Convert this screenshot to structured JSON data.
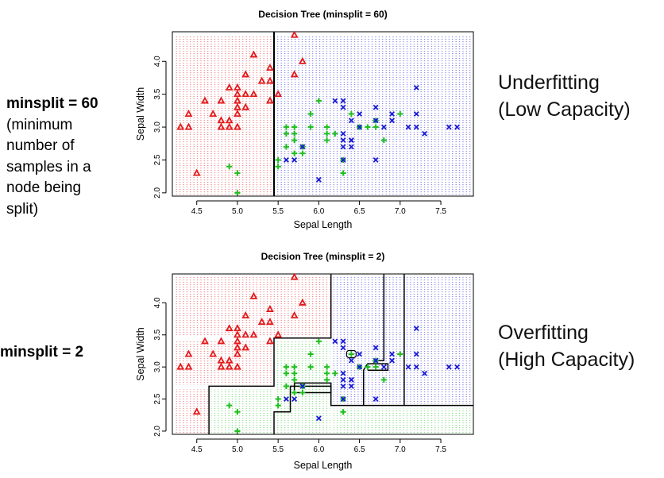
{
  "left_notes": [
    {
      "heading": "minsplit = 60",
      "body_lines": [
        "(minimum",
        "number of",
        "samples in a",
        "node being",
        "split)"
      ]
    },
    {
      "heading": "minsplit = 2",
      "body_lines": []
    }
  ],
  "right_notes": [
    {
      "line1": "Underfitting",
      "line2": "(Low Capacity)"
    },
    {
      "line1": "Overfitting",
      "line2": "(High Capacity)"
    }
  ],
  "colors": {
    "setosa": "#e41a1c",
    "versicolor": "#1fbf1f",
    "virginica": "#1a1ad6",
    "boundary": "#000000"
  },
  "chart_data": [
    {
      "type": "scatter",
      "title": "Decision Tree (minsplit = 60)",
      "xlabel": "Sepal Length",
      "ylabel": "Sepal Width",
      "xlim": [
        4.2,
        7.9
      ],
      "ylim": [
        1.95,
        4.45
      ],
      "xticks": [
        "4.5",
        "5.0",
        "5.5",
        "6.0",
        "6.5",
        "7.0",
        "7.5"
      ],
      "yticks": [
        "2.0",
        "2.5",
        "3.0",
        "3.5",
        "4.0"
      ],
      "regions": [
        {
          "class": "setosa",
          "x": [
            4.2,
            5.45
          ],
          "y": [
            1.95,
            4.45
          ]
        },
        {
          "class": "virginica",
          "x": [
            5.45,
            7.9
          ],
          "y": [
            1.95,
            4.45
          ]
        }
      ],
      "boundaries": [
        [
          [
            5.45,
            1.95
          ],
          [
            5.45,
            4.45
          ]
        ]
      ],
      "series": [
        {
          "class": "setosa",
          "marker": "triangle",
          "points": [
            [
              4.3,
              3.0
            ],
            [
              4.4,
              3.0
            ],
            [
              4.4,
              3.2
            ],
            [
              4.5,
              2.3
            ],
            [
              4.6,
              3.4
            ],
            [
              4.7,
              3.2
            ],
            [
              4.8,
              3.0
            ],
            [
              4.8,
              3.1
            ],
            [
              4.8,
              3.4
            ],
            [
              4.9,
              3.0
            ],
            [
              4.9,
              3.1
            ],
            [
              5.0,
              3.0
            ],
            [
              5.0,
              3.2
            ],
            [
              5.0,
              3.3
            ],
            [
              5.0,
              3.4
            ],
            [
              5.0,
              3.5
            ],
            [
              5.0,
              3.6
            ],
            [
              5.1,
              3.3
            ],
            [
              5.1,
              3.5
            ],
            [
              5.1,
              3.8
            ],
            [
              5.2,
              3.5
            ],
            [
              5.2,
              4.1
            ],
            [
              5.3,
              3.7
            ],
            [
              5.4,
              3.4
            ],
            [
              5.4,
              3.7
            ],
            [
              5.4,
              3.9
            ],
            [
              5.5,
              3.5
            ],
            [
              5.7,
              3.8
            ],
            [
              5.7,
              4.4
            ],
            [
              5.8,
              4.0
            ],
            [
              4.9,
              3.6
            ]
          ]
        },
        {
          "class": "versicolor",
          "marker": "plus",
          "points": [
            [
              4.9,
              2.4
            ],
            [
              5.0,
              2.0
            ],
            [
              5.0,
              2.3
            ],
            [
              5.5,
              2.4
            ],
            [
              5.5,
              2.5
            ],
            [
              5.6,
              2.7
            ],
            [
              5.6,
              2.9
            ],
            [
              5.6,
              3.0
            ],
            [
              5.7,
              2.6
            ],
            [
              5.7,
              2.8
            ],
            [
              5.7,
              2.9
            ],
            [
              5.7,
              3.0
            ],
            [
              5.8,
              2.6
            ],
            [
              5.8,
              2.7
            ],
            [
              5.9,
              3.0
            ],
            [
              5.9,
              3.2
            ],
            [
              6.0,
              3.4
            ],
            [
              6.1,
              3.0
            ],
            [
              6.1,
              2.9
            ],
            [
              6.1,
              2.8
            ],
            [
              6.2,
              2.9
            ],
            [
              6.3,
              2.3
            ],
            [
              6.3,
              2.5
            ],
            [
              6.4,
              3.2
            ],
            [
              6.5,
              3.0
            ],
            [
              6.6,
              3.0
            ],
            [
              6.7,
              3.1
            ],
            [
              6.7,
              3.0
            ],
            [
              6.8,
              2.8
            ],
            [
              7.0,
              3.2
            ]
          ]
        },
        {
          "class": "virginica",
          "marker": "cross",
          "points": [
            [
              5.6,
              2.5
            ],
            [
              5.7,
              2.5
            ],
            [
              5.8,
              2.7
            ],
            [
              6.0,
              2.2
            ],
            [
              6.2,
              3.4
            ],
            [
              6.3,
              3.4
            ],
            [
              6.3,
              2.9
            ],
            [
              6.3,
              2.8
            ],
            [
              6.3,
              2.7
            ],
            [
              6.3,
              2.5
            ],
            [
              6.4,
              2.8
            ],
            [
              6.4,
              2.7
            ],
            [
              6.4,
              3.1
            ],
            [
              6.5,
              3.2
            ],
            [
              6.7,
              3.3
            ],
            [
              6.7,
              3.1
            ],
            [
              6.7,
              2.5
            ],
            [
              6.8,
              3.0
            ],
            [
              6.9,
              3.2
            ],
            [
              6.9,
              3.1
            ],
            [
              7.1,
              3.0
            ],
            [
              7.2,
              3.6
            ],
            [
              7.2,
              3.2
            ],
            [
              7.2,
              3.0
            ],
            [
              7.3,
              2.9
            ],
            [
              7.6,
              3.0
            ],
            [
              7.7,
              3.0
            ],
            [
              6.3,
              3.3
            ],
            [
              6.4,
              2.8
            ],
            [
              6.5,
              3.0
            ]
          ]
        }
      ]
    },
    {
      "type": "scatter",
      "title": "Decision Tree (minsplit = 2)",
      "xlabel": "Sepal Length",
      "ylabel": "Sepal Width",
      "xlim": [
        4.2,
        7.9
      ],
      "ylim": [
        1.95,
        4.45
      ],
      "xticks": [
        "4.5",
        "5.0",
        "5.5",
        "6.0",
        "6.5",
        "7.0",
        "7.5"
      ],
      "yticks": [
        "2.0",
        "2.5",
        "3.0",
        "3.5",
        "4.0"
      ],
      "regions": [
        {
          "class": "setosa",
          "x": [
            4.2,
            6.15
          ],
          "y": [
            3.45,
            4.45
          ]
        },
        {
          "class": "setosa",
          "x": [
            4.2,
            5.45
          ],
          "y": [
            2.7,
            3.45
          ]
        },
        {
          "class": "setosa",
          "x": [
            4.2,
            4.65
          ],
          "y": [
            1.95,
            2.7
          ]
        },
        {
          "class": "versicolor",
          "x": [
            4.65,
            5.45
          ],
          "y": [
            1.95,
            2.7
          ]
        },
        {
          "class": "versicolor",
          "x": [
            5.45,
            6.15
          ],
          "y": [
            1.95,
            3.45
          ]
        },
        {
          "class": "virginica",
          "x": [
            6.15,
            7.9
          ],
          "y": [
            2.4,
            4.45
          ]
        },
        {
          "class": "versicolor",
          "x": [
            6.15,
            7.9
          ],
          "y": [
            1.95,
            2.4
          ]
        }
      ],
      "boundaries": [
        [
          [
            6.15,
            4.45
          ],
          [
            6.15,
            3.45
          ],
          [
            5.45,
            3.45
          ],
          [
            5.45,
            2.7
          ],
          [
            4.65,
            2.7
          ],
          [
            4.65,
            1.95
          ]
        ],
        [
          [
            5.45,
            1.95
          ],
          [
            5.45,
            2.3
          ],
          [
            5.65,
            2.3
          ],
          [
            5.65,
            2.7
          ],
          [
            6.15,
            2.7
          ],
          [
            6.15,
            2.4
          ],
          [
            7.9,
            2.4
          ]
        ],
        [
          [
            5.7,
            2.75
          ],
          [
            6.15,
            2.75
          ],
          [
            6.15,
            2.6
          ],
          [
            5.7,
            2.6
          ],
          [
            5.7,
            2.75
          ]
        ],
        [
          [
            6.55,
            2.4
          ],
          [
            6.55,
            2.95
          ],
          [
            6.6,
            3.05
          ],
          [
            6.85,
            3.05
          ],
          [
            6.85,
            2.95
          ],
          [
            6.6,
            2.95
          ]
        ],
        [
          [
            7.05,
            2.4
          ],
          [
            7.05,
            4.45
          ]
        ],
        [
          [
            6.8,
            4.45
          ],
          [
            6.8,
            3.1
          ],
          [
            6.7,
            3.1
          ]
        ]
      ],
      "series_from": 0,
      "highlight": [
        [
          6.4,
          3.2
        ]
      ]
    }
  ]
}
